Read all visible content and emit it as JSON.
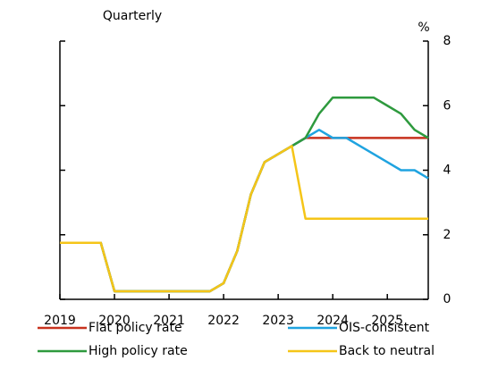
{
  "chart_data": {
    "type": "line",
    "subtitle": "Quarterly",
    "unit": "%",
    "x": [
      2019,
      2019.25,
      2019.5,
      2019.75,
      2020,
      2020.25,
      2020.5,
      2020.75,
      2021,
      2021.25,
      2021.5,
      2021.75,
      2022,
      2022.25,
      2022.5,
      2022.75,
      2023,
      2023.25,
      2023.5,
      2023.75,
      2024,
      2024.25,
      2024.5,
      2024.75,
      2025,
      2025.25,
      2025.5,
      2025.75
    ],
    "xlim": [
      2019,
      2025.75
    ],
    "xticks": [
      2019,
      2020,
      2021,
      2022,
      2023,
      2024,
      2025
    ],
    "ylim": [
      0,
      8
    ],
    "yticks": [
      0,
      2,
      4,
      6,
      8
    ],
    "series": [
      {
        "name": "Flat policy rate",
        "color": "#c8321e",
        "values": [
          1.75,
          1.75,
          1.75,
          1.75,
          0.25,
          0.25,
          0.25,
          0.25,
          0.25,
          0.25,
          0.25,
          0.25,
          0.5,
          1.5,
          3.25,
          4.25,
          4.5,
          4.75,
          5,
          5,
          5,
          5,
          5,
          5,
          5,
          5,
          5,
          5
        ]
      },
      {
        "name": "OIS-consistent",
        "color": "#1fa3e0",
        "values": [
          1.75,
          1.75,
          1.75,
          1.75,
          0.25,
          0.25,
          0.25,
          0.25,
          0.25,
          0.25,
          0.25,
          0.25,
          0.5,
          1.5,
          3.25,
          4.25,
          4.5,
          4.75,
          5,
          5.25,
          5,
          5,
          4.75,
          4.5,
          4.25,
          4,
          4,
          3.75
        ]
      },
      {
        "name": "High policy rate",
        "color": "#2e9a3e",
        "values": [
          1.75,
          1.75,
          1.75,
          1.75,
          0.25,
          0.25,
          0.25,
          0.25,
          0.25,
          0.25,
          0.25,
          0.25,
          0.5,
          1.5,
          3.25,
          4.25,
          4.5,
          4.75,
          5,
          5.75,
          6.25,
          6.25,
          6.25,
          6.25,
          6,
          5.75,
          5.25,
          5
        ]
      },
      {
        "name": "Back to neutral",
        "color": "#f5c518",
        "values": [
          1.75,
          1.75,
          1.75,
          1.75,
          0.25,
          0.25,
          0.25,
          0.25,
          0.25,
          0.25,
          0.25,
          0.25,
          0.5,
          1.5,
          3.25,
          4.25,
          4.5,
          4.75,
          2.5,
          2.5,
          2.5,
          2.5,
          2.5,
          2.5,
          2.5,
          2.5,
          2.5,
          2.5
        ]
      }
    ]
  }
}
